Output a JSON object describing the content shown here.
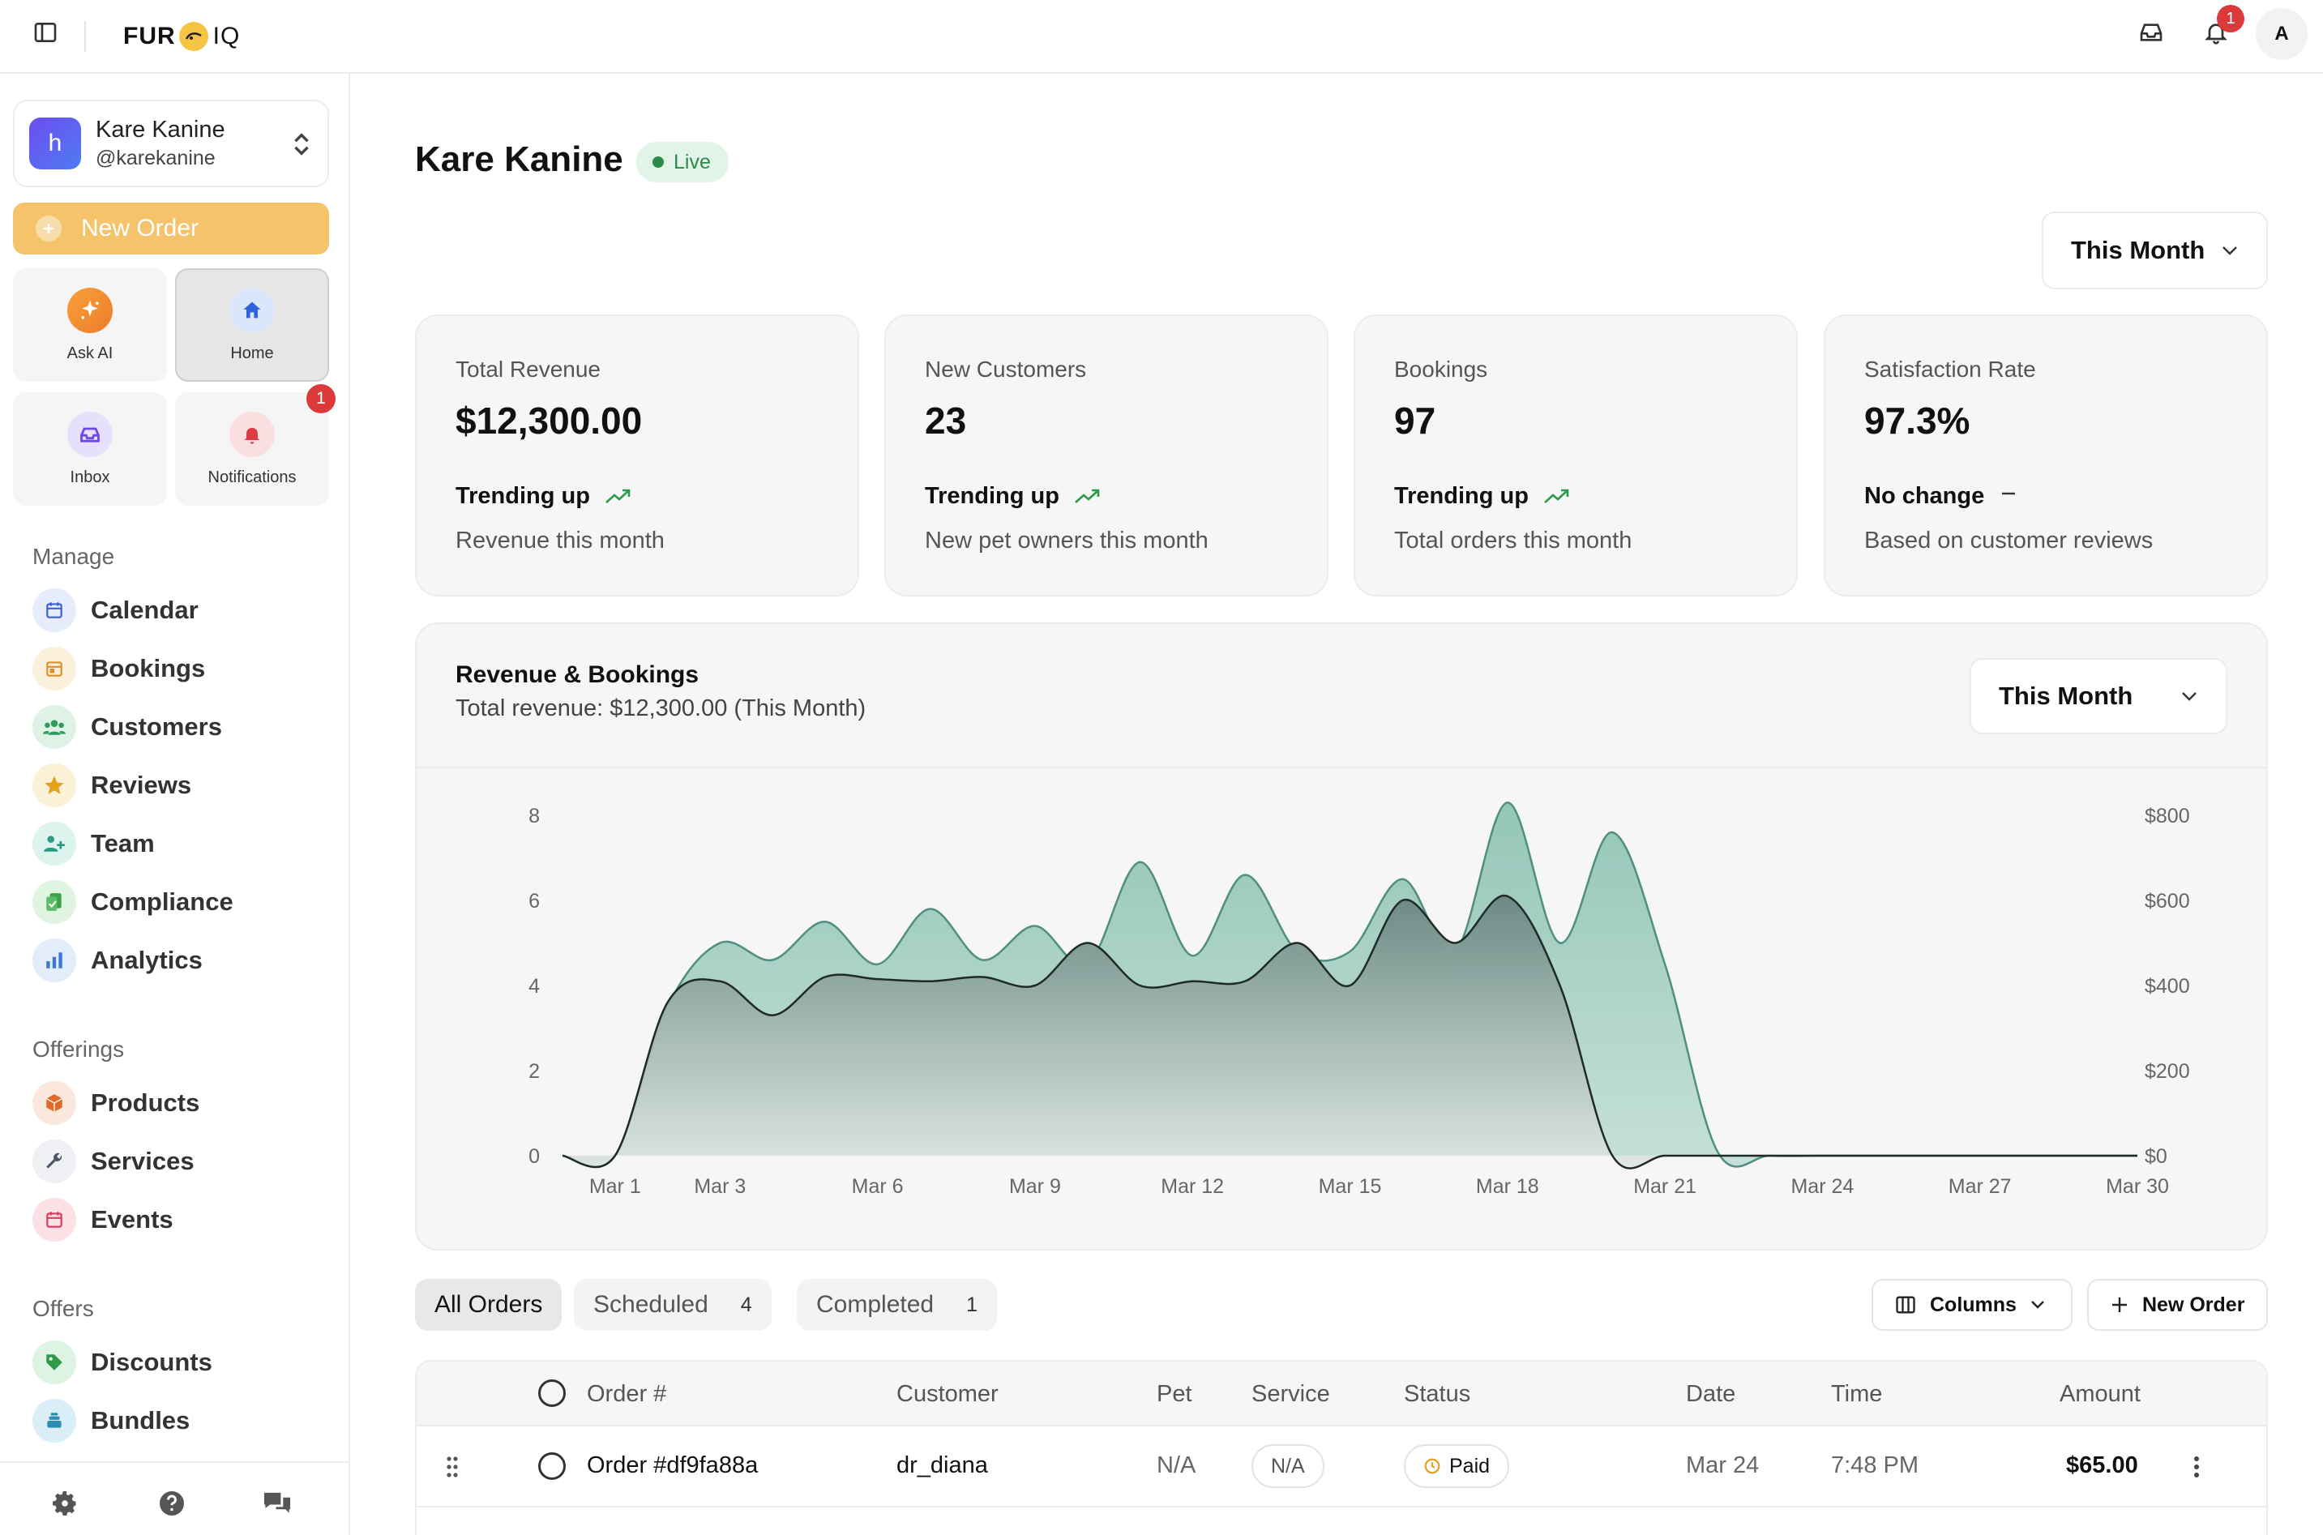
{
  "topbar": {
    "logo_left": "FUR",
    "logo_right": "IQ",
    "notification_count": "1",
    "avatar_initial": "A"
  },
  "sidebar": {
    "account": {
      "initial": "h",
      "name": "Kare Kanine",
      "handle": "@karekanine"
    },
    "new_order_label": "New Order",
    "tiles": [
      {
        "label": "Ask AI",
        "icon": "sparkle-icon"
      },
      {
        "label": "Home",
        "icon": "home-icon"
      },
      {
        "label": "Inbox",
        "icon": "inbox-icon"
      },
      {
        "label": "Notifications",
        "icon": "bell-icon",
        "badge": "1"
      }
    ],
    "sections": [
      {
        "title": "Manage",
        "items": [
          "Calendar",
          "Bookings",
          "Customers",
          "Reviews",
          "Team",
          "Compliance",
          "Analytics"
        ]
      },
      {
        "title": "Offerings",
        "items": [
          "Products",
          "Services",
          "Events"
        ]
      },
      {
        "title": "Offers",
        "items": [
          "Discounts",
          "Bundles"
        ]
      }
    ]
  },
  "header": {
    "title": "Kare Kanine",
    "status": "Live",
    "period": "This Month"
  },
  "kpis": [
    {
      "label": "Total Revenue",
      "value": "$12,300.00",
      "trend": "Trending up",
      "sub": "Revenue this month"
    },
    {
      "label": "New Customers",
      "value": "23",
      "trend": "Trending up",
      "sub": "New pet owners this month"
    },
    {
      "label": "Bookings",
      "value": "97",
      "trend": "Trending up",
      "sub": "Total orders this month"
    },
    {
      "label": "Satisfaction Rate",
      "value": "97.3%",
      "trend": "No change",
      "sub": "Based on customer reviews"
    }
  ],
  "chart": {
    "title": "Revenue & Bookings",
    "subtitle": "Total revenue: $12,300.00 (This Month)",
    "period": "This Month"
  },
  "chart_data": {
    "type": "area",
    "x": [
      "Mar 0",
      "Mar 1",
      "Mar 2",
      "Mar 3",
      "Mar 4",
      "Mar 5",
      "Mar 6",
      "Mar 7",
      "Mar 8",
      "Mar 9",
      "Mar 10",
      "Mar 11",
      "Mar 12",
      "Mar 13",
      "Mar 14",
      "Mar 15",
      "Mar 16",
      "Mar 17",
      "Mar 18",
      "Mar 19",
      "Mar 20",
      "Mar 21",
      "Mar 22",
      "Mar 23",
      "Mar 24",
      "Mar 25",
      "Mar 26",
      "Mar 27",
      "Mar 28",
      "Mar 29",
      "Mar 30"
    ],
    "x_tick_labels": [
      "Mar 1",
      "Mar 3",
      "Mar 6",
      "Mar 9",
      "Mar 12",
      "Mar 15",
      "Mar 18",
      "Mar 21",
      "Mar 24",
      "Mar 27",
      "Mar 30"
    ],
    "series": [
      {
        "axis": "left",
        "color": "#a9cfc5",
        "values": [
          0,
          0,
          3.5,
          5.0,
          4.6,
          5.5,
          4.5,
          5.8,
          4.6,
          5.4,
          4.5,
          6.9,
          4.7,
          6.6,
          4.8,
          4.8,
          6.5,
          4.8,
          8.3,
          5.0,
          7.6,
          4.5,
          0.1,
          0,
          0,
          0,
          0,
          0,
          0,
          0,
          0
        ]
      },
      {
        "axis": "right",
        "color": "#6b8a83",
        "values": [
          0,
          0,
          360,
          410,
          330,
          420,
          415,
          410,
          420,
          400,
          500,
          400,
          410,
          410,
          500,
          400,
          600,
          500,
          610,
          400,
          0,
          0,
          0,
          0,
          0,
          0,
          0,
          0,
          0,
          0,
          0
        ]
      }
    ],
    "ylim_left": [
      0,
      8
    ],
    "yticks_left": [
      "0",
      "2",
      "4",
      "6",
      "8"
    ],
    "ylim_right": [
      0,
      800
    ],
    "yticks_right": [
      "$0",
      "$200",
      "$400",
      "$600",
      "$800"
    ],
    "grid": false,
    "legend": "none"
  },
  "orders": {
    "filters": [
      {
        "label": "All Orders",
        "count": ""
      },
      {
        "label": "Scheduled",
        "count": "4"
      },
      {
        "label": "Completed",
        "count": "1"
      }
    ],
    "columns_button": "Columns",
    "new_order_button": "New Order",
    "headers": [
      "Order #",
      "Customer",
      "Pet",
      "Service",
      "Status",
      "Date",
      "Time",
      "Amount"
    ],
    "rows": [
      {
        "order": "Order #df9fa88a",
        "customer": "dr_diana",
        "pet": "N/A",
        "service": "N/A",
        "status": "Paid",
        "date": "Mar 24",
        "time": "7:48 PM",
        "amount": "$65.00"
      }
    ]
  },
  "colors": {
    "accent": "#f5c36a",
    "live": "#2c8a4a",
    "badge": "#dc3a3a",
    "chart_light": "#a9cfc5",
    "chart_dark": "#6b8a83"
  }
}
